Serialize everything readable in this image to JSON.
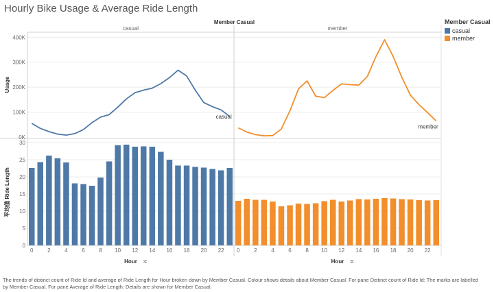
{
  "title": "Hourly Bike Usage & Average Ride Length",
  "legend": {
    "title": "Member Casual",
    "items": [
      {
        "label": "casual",
        "color": "#4e79a7"
      },
      {
        "label": "member",
        "color": "#f28e2b"
      }
    ]
  },
  "caption": "The trends of distinct count of Ride Id and average of Ride Length for Hour  broken down by Member Casual. Colour shows details about Member Casual. For pane Distinct count of Ride Id: The marks are labelled by Member Casual. For pane Average of Ride Length: Details are shown for Member Casual.",
  "chart_data": {
    "type": "line",
    "column_header": "Member Casual",
    "panels": [
      "casual",
      "member"
    ],
    "x": [
      0,
      1,
      2,
      3,
      4,
      5,
      6,
      7,
      8,
      9,
      10,
      11,
      12,
      13,
      14,
      15,
      16,
      17,
      18,
      19,
      20,
      21,
      22,
      23
    ],
    "x_ticks": [
      0,
      2,
      4,
      6,
      8,
      10,
      12,
      14,
      16,
      18,
      20,
      22
    ],
    "xlabel": "Hour",
    "usage": {
      "ylabel": "Usage",
      "ylim": [
        0,
        420000
      ],
      "ticks": [
        0,
        100000,
        200000,
        300000,
        400000
      ],
      "tick_labels": [
        "0K",
        "100K",
        "200K",
        "300K",
        "400K"
      ],
      "series": [
        {
          "name": "casual",
          "color": "#4e79a7",
          "values": [
            55000,
            35000,
            22000,
            12000,
            8000,
            14000,
            30000,
            58000,
            80000,
            90000,
            120000,
            153000,
            178000,
            188000,
            196000,
            214000,
            238000,
            268000,
            245000,
            188000,
            138000,
            122000,
            109000,
            83000
          ]
        },
        {
          "name": "member",
          "color": "#f28e2b",
          "values": [
            37000,
            20000,
            10000,
            5000,
            6000,
            32000,
            105000,
            193000,
            225000,
            164000,
            158000,
            187000,
            213000,
            210000,
            208000,
            243000,
            322000,
            390000,
            323000,
            240000,
            168000,
            130000,
            98000,
            65000
          ]
        }
      ]
    },
    "ride_length": {
      "ylabel": "平均值 Ride Length",
      "ylim": [
        0,
        31
      ],
      "ticks": [
        0,
        5,
        10,
        15,
        20,
        25,
        30
      ],
      "series": [
        {
          "name": "casual",
          "color": "#4e79a7",
          "values": [
            22.6,
            24.3,
            26.2,
            25.4,
            24.2,
            18.1,
            17.9,
            17.4,
            19.8,
            24.5,
            29.2,
            29.4,
            28.8,
            28.9,
            28.8,
            27.3,
            25.0,
            23.3,
            23.3,
            22.9,
            22.7,
            22.3,
            21.9,
            22.6
          ]
        },
        {
          "name": "member",
          "color": "#f28e2b",
          "values": [
            13.0,
            13.6,
            13.3,
            13.3,
            12.8,
            11.4,
            11.7,
            12.2,
            12.1,
            12.3,
            12.9,
            13.3,
            12.8,
            13.1,
            13.5,
            13.4,
            13.6,
            13.8,
            13.7,
            13.5,
            13.4,
            13.2,
            13.1,
            13.2
          ]
        }
      ]
    }
  }
}
